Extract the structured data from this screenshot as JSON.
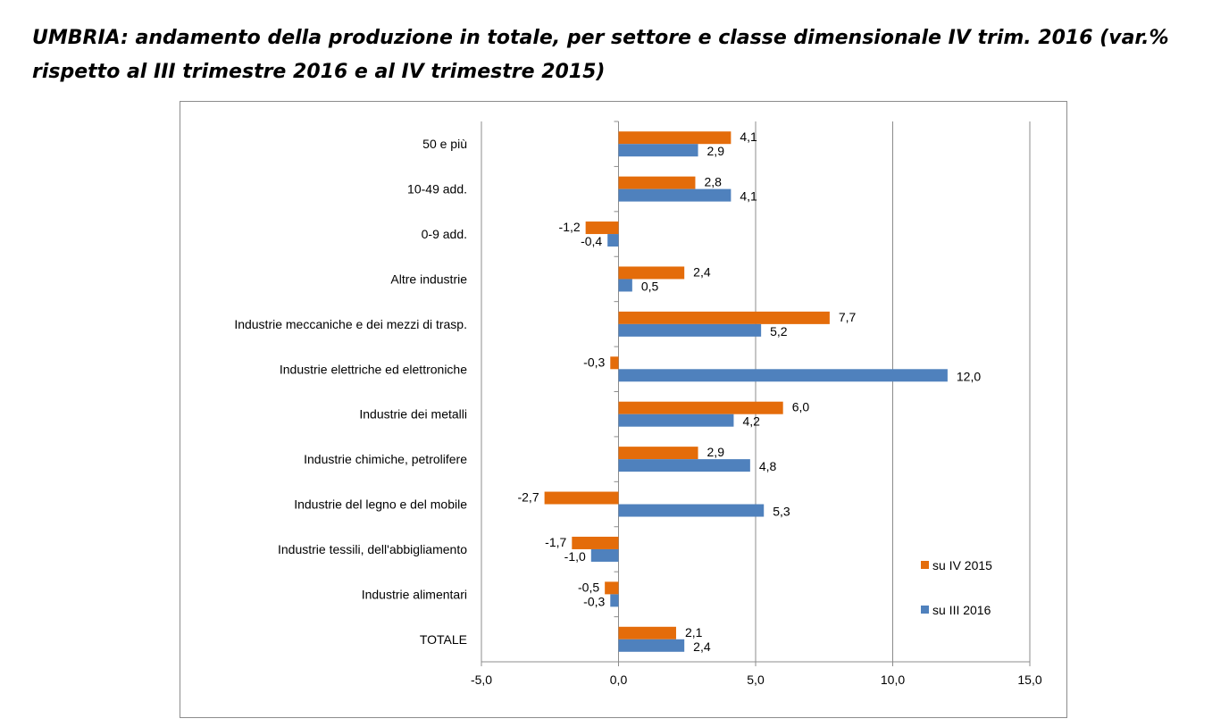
{
  "title": {
    "line1": "UMBRIA: andamento della produzione in totale, per settore e classe dimensionale IV trim. 2016 (var.%",
    "line2": "rispetto al III trimestre 2016 e al IV trimestre 2015)"
  },
  "chart_data": {
    "type": "bar",
    "orientation": "horizontal",
    "categories": [
      "50 e più",
      "10-49 add.",
      "0-9 add.",
      "Altre industrie",
      "Industrie meccaniche e dei mezzi di trasp.",
      "Industrie elettriche ed elettroniche",
      "Industrie dei metalli",
      "Industrie chimiche, petrolifere",
      "Industrie del legno e del mobile",
      "Industrie tessili, dell'abbigliamento",
      "Industrie alimentari",
      "TOTALE"
    ],
    "series": [
      {
        "name": "su IV 2015",
        "color": "#E46C0A",
        "values": [
          4.1,
          2.8,
          -1.2,
          2.4,
          7.7,
          -0.3,
          6.0,
          2.9,
          -2.7,
          -1.7,
          -0.5,
          2.1
        ],
        "labels": [
          "4,1",
          "2,8",
          "-1,2",
          "2,4",
          "7,7",
          "-0,3",
          "6,0",
          "2,9",
          "-2,7",
          "-1,7",
          "-0,5",
          "2,1"
        ]
      },
      {
        "name": "su III 2016",
        "color": "#4F81BD",
        "values": [
          2.9,
          4.1,
          -0.4,
          0.5,
          5.2,
          12.0,
          4.2,
          4.8,
          5.3,
          -1.0,
          -0.3,
          2.4
        ],
        "labels": [
          "2,9",
          "4,1",
          "-0,4",
          "0,5",
          "5,2",
          "12,0",
          "4,2",
          "4,8",
          "5,3",
          "-1,0",
          "-0,3",
          "2,4"
        ]
      }
    ],
    "xlim": [
      -5,
      15
    ],
    "xticks": [
      -5,
      0,
      5,
      10,
      15
    ],
    "xtick_labels": [
      "-5,0",
      "0,0",
      "5,0",
      "10,0",
      "15,0"
    ],
    "grid": true,
    "legend_position": "bottom-right"
  }
}
